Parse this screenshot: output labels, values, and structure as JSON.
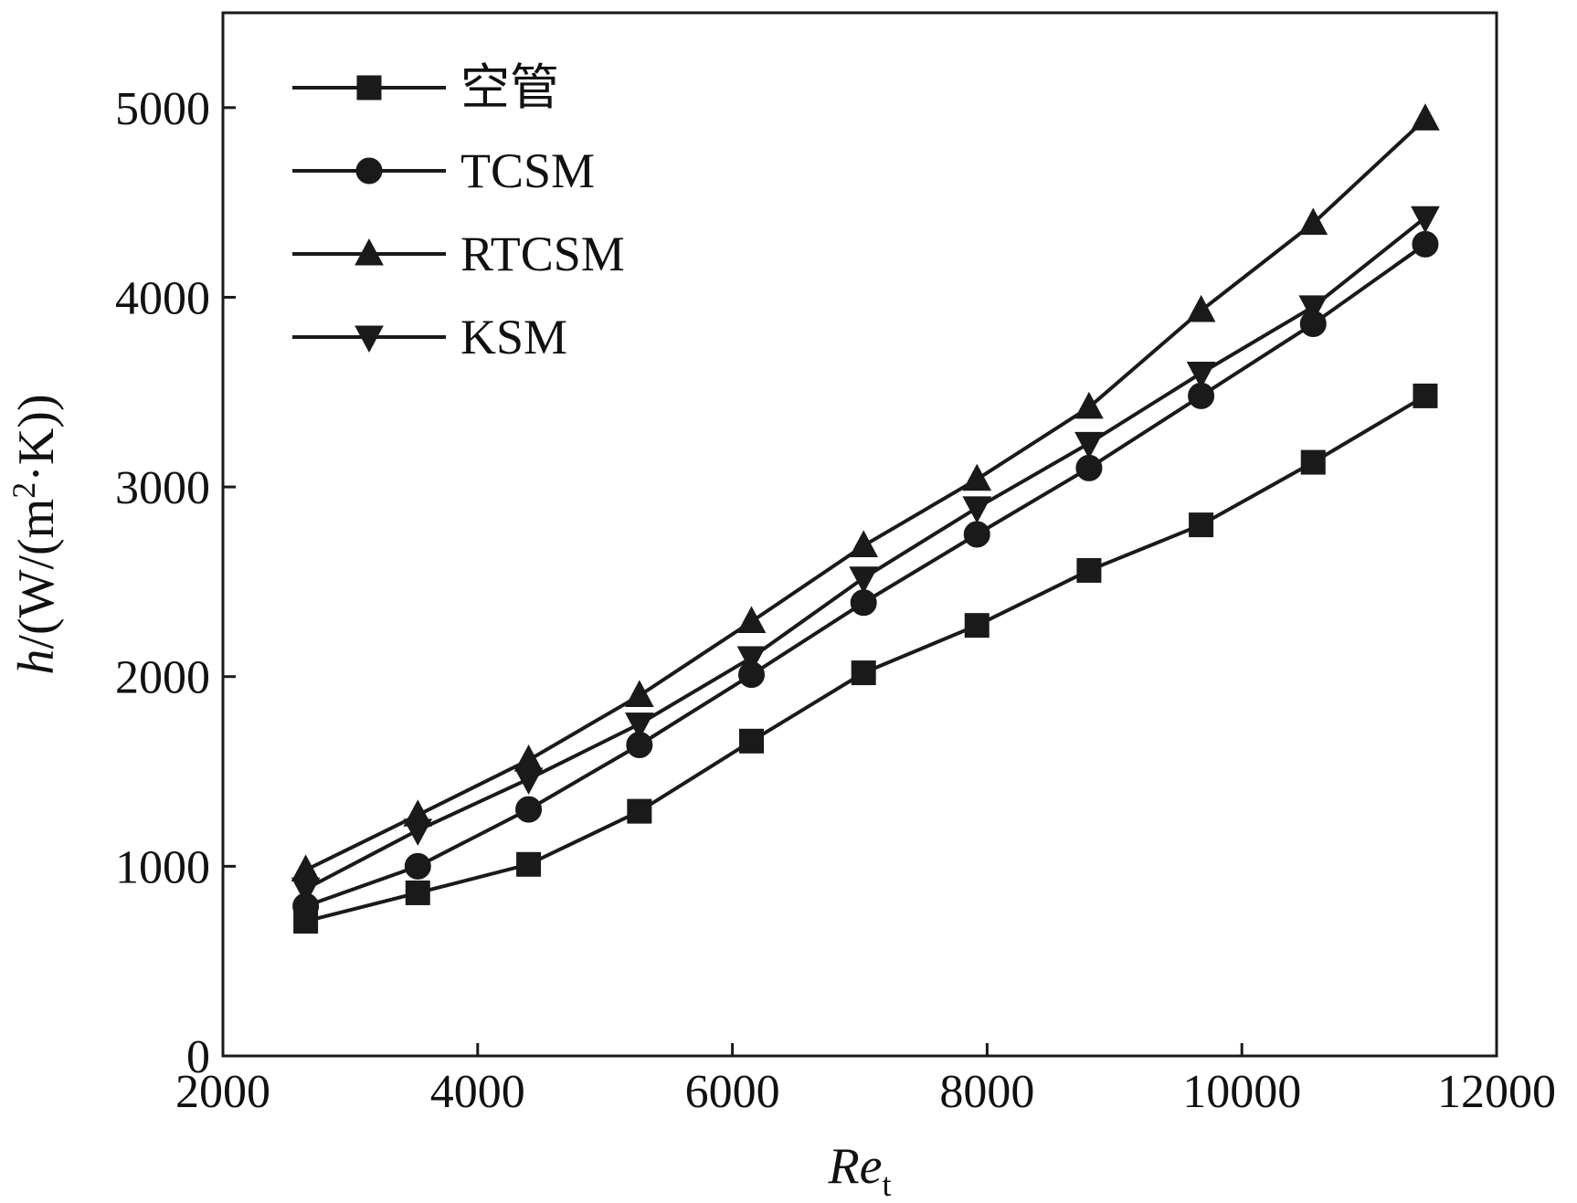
{
  "chart_data": {
    "type": "line",
    "x": [
      2650,
      3530,
      4400,
      5270,
      6150,
      7030,
      7920,
      8800,
      9680,
      10560,
      11440
    ],
    "series": [
      {
        "name": "空管",
        "marker": "square",
        "values": [
          710,
          860,
          1010,
          1290,
          1660,
          2020,
          2270,
          2560,
          2800,
          3130,
          3480
        ]
      },
      {
        "name": "TCSM",
        "marker": "circle",
        "values": [
          790,
          1000,
          1300,
          1640,
          2010,
          2390,
          2750,
          3100,
          3480,
          3860,
          4280
        ]
      },
      {
        "name": "RTCSM",
        "marker": "triangle-up",
        "values": [
          980,
          1270,
          1560,
          1900,
          2290,
          2690,
          3040,
          3420,
          3930,
          4390,
          4940
        ]
      },
      {
        "name": "KSM",
        "marker": "triangle-down",
        "values": [
          880,
          1190,
          1460,
          1750,
          2100,
          2520,
          2890,
          3230,
          3600,
          3950,
          4420
        ]
      }
    ],
    "xlabel": {
      "main": "Re",
      "sub": "t"
    },
    "ylabel": {
      "italic": "h",
      "pre": "/(W/(m",
      "sup": "2",
      "post": "·K))"
    },
    "xlim": [
      2000,
      12000
    ],
    "ylim": [
      0,
      5500
    ],
    "xticks": [
      2000,
      4000,
      6000,
      8000,
      10000,
      12000
    ],
    "yticks": [
      0,
      1000,
      2000,
      3000,
      4000,
      5000
    ],
    "grid": false,
    "legend_position": "top-left",
    "color": "#1a1a1a"
  }
}
